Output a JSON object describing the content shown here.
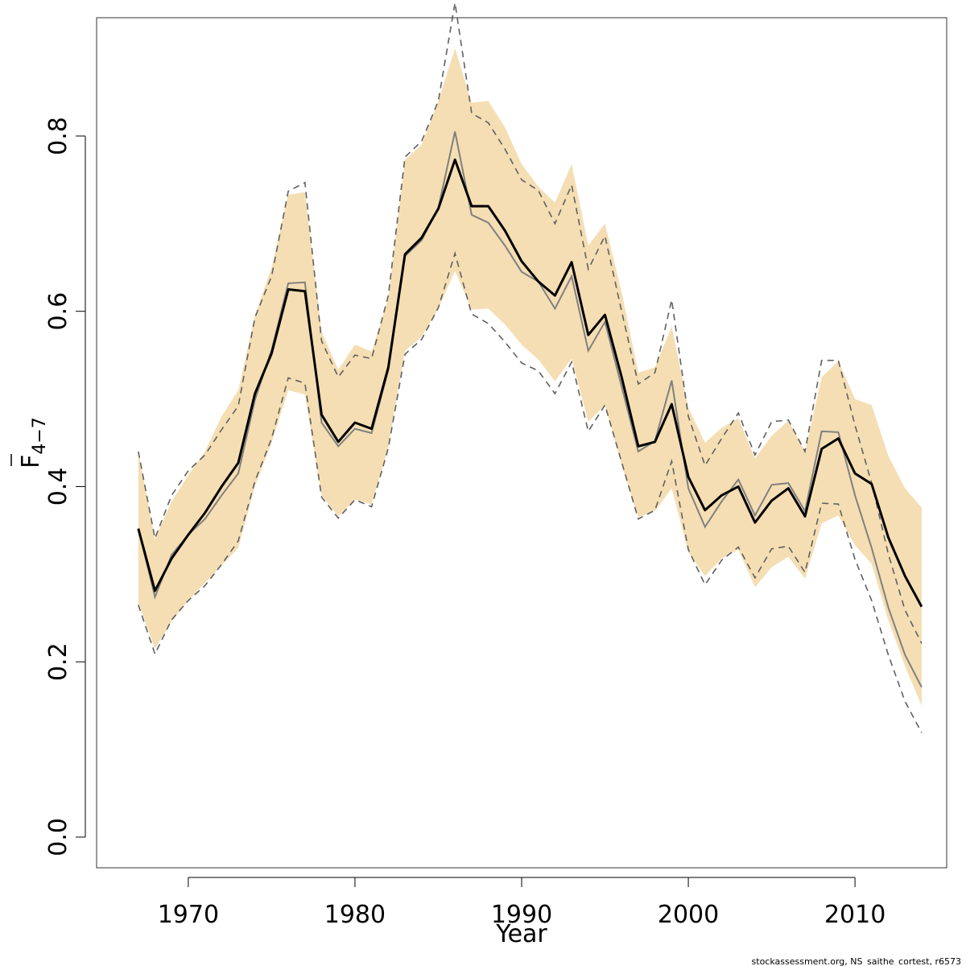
{
  "chart_data": {
    "type": "line",
    "xlabel": "Year",
    "ylabel": {
      "base": "F",
      "subscript": "4−7"
    },
    "credit": "stockassessment.org, NS_saithe_cortest, r6573",
    "xlim": [
      1964.5,
      2015.5
    ],
    "ylim": [
      -0.035,
      0.935
    ],
    "xticks": [
      1970,
      1980,
      1990,
      2000,
      2010
    ],
    "yticks": [
      0.0,
      0.2,
      0.4,
      0.6,
      0.8
    ],
    "ytick_labels": [
      "0.0",
      "0.2",
      "0.4",
      "0.6",
      "0.8"
    ],
    "grid": false,
    "legend": "none",
    "colors": {
      "band": "#f5deb3",
      "main": "#000000",
      "comparison": "#808080",
      "comparison_ci": "#606060"
    },
    "x": [
      1967,
      1968,
      1969,
      1970,
      1971,
      1972,
      1973,
      1974,
      1975,
      1976,
      1977,
      1978,
      1979,
      1980,
      1981,
      1982,
      1983,
      1984,
      1985,
      1986,
      1987,
      1988,
      1989,
      1990,
      1991,
      1992,
      1993,
      1994,
      1995,
      1996,
      1997,
      1998,
      1999,
      2000,
      2001,
      2002,
      2003,
      2004,
      2005,
      2006,
      2007,
      2008,
      2009,
      2010,
      2011,
      2012,
      2013,
      2014
    ],
    "series": [
      {
        "role": "estimate",
        "values": [
          0.352,
          0.281,
          0.318,
          0.345,
          0.37,
          0.4,
          0.427,
          0.506,
          0.552,
          0.625,
          0.623,
          0.482,
          0.451,
          0.473,
          0.466,
          0.536,
          0.665,
          0.684,
          0.717,
          0.773,
          0.72,
          0.72,
          0.692,
          0.657,
          0.634,
          0.618,
          0.656,
          0.573,
          0.596,
          0.525,
          0.446,
          0.451,
          0.494,
          0.411,
          0.373,
          0.39,
          0.4,
          0.359,
          0.384,
          0.398,
          0.366,
          0.443,
          0.455,
          0.415,
          0.403,
          0.342,
          0.298,
          0.263
        ]
      },
      {
        "role": "ci-lower",
        "values": [
          0.268,
          0.215,
          0.246,
          0.27,
          0.29,
          0.31,
          0.33,
          0.4,
          0.45,
          0.51,
          0.505,
          0.39,
          0.366,
          0.385,
          0.38,
          0.445,
          0.555,
          0.571,
          0.603,
          0.646,
          0.602,
          0.603,
          0.585,
          0.562,
          0.545,
          0.52,
          0.546,
          0.474,
          0.493,
          0.425,
          0.365,
          0.372,
          0.398,
          0.325,
          0.298,
          0.318,
          0.328,
          0.285,
          0.308,
          0.32,
          0.295,
          0.358,
          0.367,
          0.333,
          0.312,
          0.247,
          0.195,
          0.15
        ]
      },
      {
        "role": "ci-upper",
        "values": [
          0.44,
          0.34,
          0.383,
          0.413,
          0.44,
          0.48,
          0.51,
          0.595,
          0.65,
          0.733,
          0.736,
          0.577,
          0.533,
          0.562,
          0.554,
          0.615,
          0.773,
          0.79,
          0.84,
          0.9,
          0.838,
          0.84,
          0.81,
          0.768,
          0.742,
          0.724,
          0.768,
          0.675,
          0.7,
          0.622,
          0.53,
          0.536,
          0.583,
          0.49,
          0.45,
          0.467,
          0.478,
          0.432,
          0.458,
          0.475,
          0.44,
          0.525,
          0.543,
          0.5,
          0.493,
          0.435,
          0.398,
          0.376
        ]
      },
      {
        "role": "comparison",
        "values": [
          0.352,
          0.274,
          0.322,
          0.345,
          0.363,
          0.39,
          0.415,
          0.499,
          0.556,
          0.632,
          0.633,
          0.473,
          0.446,
          0.466,
          0.461,
          0.533,
          0.663,
          0.681,
          0.718,
          0.805,
          0.71,
          0.701,
          0.675,
          0.645,
          0.634,
          0.603,
          0.64,
          0.555,
          0.588,
          0.514,
          0.44,
          0.452,
          0.521,
          0.398,
          0.354,
          0.383,
          0.408,
          0.367,
          0.402,
          0.404,
          0.372,
          0.463,
          0.462,
          0.39,
          0.33,
          0.262,
          0.208,
          0.171
        ]
      },
      {
        "role": "comparison-ci-lower",
        "values": [
          0.265,
          0.209,
          0.248,
          0.27,
          0.287,
          0.311,
          0.338,
          0.406,
          0.455,
          0.524,
          0.518,
          0.388,
          0.364,
          0.385,
          0.377,
          0.444,
          0.551,
          0.568,
          0.604,
          0.666,
          0.597,
          0.586,
          0.565,
          0.541,
          0.532,
          0.506,
          0.542,
          0.463,
          0.493,
          0.428,
          0.363,
          0.373,
          0.429,
          0.328,
          0.288,
          0.316,
          0.331,
          0.296,
          0.329,
          0.332,
          0.302,
          0.381,
          0.38,
          0.317,
          0.27,
          0.208,
          0.155,
          0.119
        ]
      },
      {
        "role": "comparison-ci-upper",
        "values": [
          0.44,
          0.341,
          0.39,
          0.418,
          0.436,
          0.465,
          0.492,
          0.593,
          0.64,
          0.737,
          0.747,
          0.566,
          0.525,
          0.55,
          0.546,
          0.618,
          0.776,
          0.794,
          0.84,
          0.952,
          0.826,
          0.815,
          0.785,
          0.75,
          0.738,
          0.7,
          0.744,
          0.648,
          0.686,
          0.6,
          0.517,
          0.53,
          0.613,
          0.48,
          0.424,
          0.455,
          0.484,
          0.436,
          0.474,
          0.476,
          0.44,
          0.544,
          0.544,
          0.47,
          0.404,
          0.323,
          0.259,
          0.221
        ]
      }
    ]
  }
}
